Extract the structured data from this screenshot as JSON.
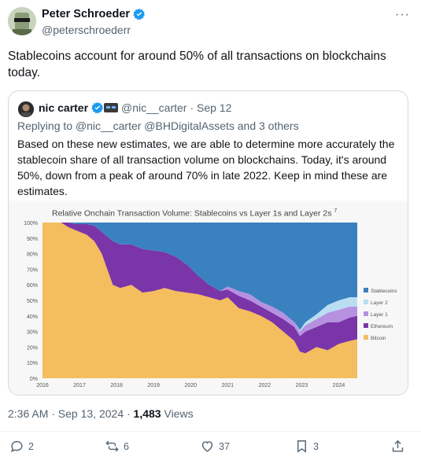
{
  "tweet": {
    "author_name": "Peter Schroeder",
    "author_handle": "@peterschroederr",
    "more_label": "···",
    "text": "Stablecoins account for around 50% of all transactions on blockchains today.",
    "timestamp": "2:36 AM · Sep 13, 2024 · ",
    "views_count": "1,483",
    "views_label": " Views"
  },
  "quote": {
    "author_name": "nic carter",
    "author_handle": "@nic__carter",
    "date": "· Sep 12",
    "reply_prefix": "Replying to ",
    "reply_targets": "@nic__carter @BHDigitalAssets and 3 others",
    "text": "Based on these new estimates, we are able to determine more accurately the stablecoin share of all transaction volume on blockchains. Today, it's around 50%, down from a peak of around 70% in late 2022. Keep in mind these are estimates."
  },
  "actions": {
    "replies": "2",
    "reposts": "6",
    "likes": "37",
    "bookmarks": "3"
  },
  "icons": [
    "verified-badge-icon",
    "reply-icon",
    "repost-icon",
    "like-icon",
    "bookmark-icon",
    "share-icon",
    "more-icon"
  ],
  "colors": {
    "verified": "#1d9bf0",
    "stablecoins": "#3a81c0",
    "layer2": "#b9def2",
    "layer1": "#b691e0",
    "ethereum": "#7a35a8",
    "bitcoin": "#f4bd5e"
  },
  "chart_data": {
    "type": "area",
    "stacked": true,
    "normalized": true,
    "title": "Relative Onchain Transaction Volume: Stablecoins vs Layer 1s and Layer 2s",
    "title_superscript": "7",
    "x_ticks": [
      "2016",
      "2017",
      "2018",
      "2019",
      "2020",
      "2021",
      "2022",
      "2023",
      "2024"
    ],
    "y_ticks": [
      "0%",
      "10%",
      "20%",
      "30%",
      "40%",
      "50%",
      "60%",
      "70%",
      "80%",
      "90%",
      "100%"
    ],
    "ylim": [
      0,
      100
    ],
    "legend_position": "right",
    "x": [
      2016.0,
      2016.5,
      2016.7,
      2016.9,
      2017.2,
      2017.4,
      2017.6,
      2017.9,
      2018.1,
      2018.4,
      2018.7,
      2019.0,
      2019.3,
      2019.6,
      2019.9,
      2020.2,
      2020.5,
      2020.8,
      2021.0,
      2021.3,
      2021.6,
      2021.9,
      2022.2,
      2022.5,
      2022.8,
      2022.95,
      2023.1,
      2023.4,
      2023.7,
      2024.0,
      2024.3,
      2024.5
    ],
    "series": [
      {
        "name": "Bitcoin",
        "values": [
          100,
          100,
          97,
          95,
          92,
          88,
          80,
          60,
          58,
          60,
          55,
          56,
          58,
          56,
          55,
          54,
          52,
          50,
          52,
          45,
          43,
          40,
          36,
          30,
          24,
          17,
          16,
          20,
          18,
          22,
          24,
          25
        ]
      },
      {
        "name": "Ethereum",
        "values": [
          0,
          0,
          3,
          4,
          7,
          10,
          14,
          28,
          28,
          26,
          28,
          26,
          23,
          22,
          18,
          12,
          8,
          6,
          5,
          8,
          7,
          6,
          6,
          8,
          9,
          10,
          14,
          13,
          18,
          14,
          15,
          15
        ]
      },
      {
        "name": "Layer 1",
        "values": [
          0,
          0,
          0,
          0,
          0,
          0,
          0,
          0,
          0,
          0,
          0,
          0,
          0,
          0,
          0,
          0,
          0,
          0,
          2,
          3,
          4,
          3,
          4,
          4,
          3,
          3,
          4,
          5,
          6,
          8,
          7,
          6
        ]
      },
      {
        "name": "Layer 2",
        "values": [
          0,
          0,
          0,
          0,
          0,
          0,
          0,
          0,
          0,
          0,
          0,
          0,
          0,
          0,
          0,
          0,
          0,
          0,
          0,
          0,
          0,
          0,
          0,
          0,
          0,
          1,
          2,
          3,
          5,
          6,
          6,
          6
        ]
      },
      {
        "name": "Stablecoins",
        "values": [
          0,
          0,
          0,
          1,
          1,
          2,
          6,
          12,
          14,
          14,
          17,
          18,
          19,
          22,
          27,
          34,
          40,
          44,
          41,
          44,
          46,
          51,
          54,
          58,
          64,
          69,
          64,
          59,
          53,
          50,
          48,
          48
        ]
      }
    ]
  }
}
